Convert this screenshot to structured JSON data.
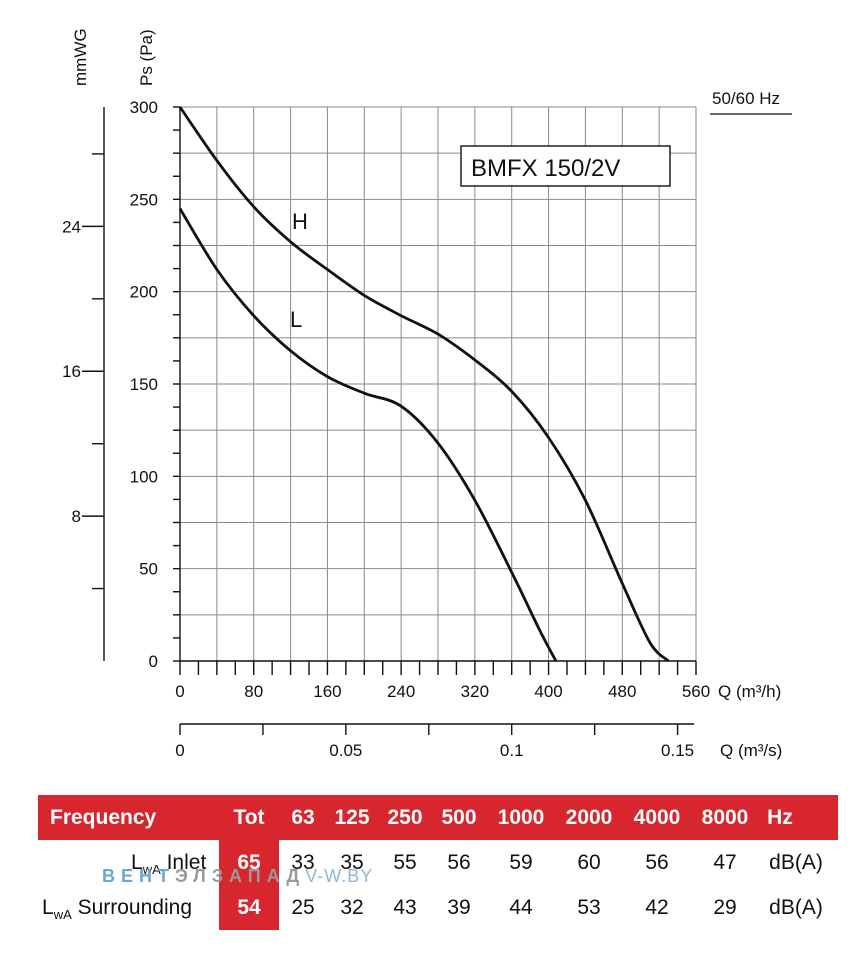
{
  "chart_data": {
    "type": "line",
    "title": "BMFX 150/2V",
    "frequency_label": "50/60 Hz",
    "y_label_pa": "Ps (Pa)",
    "y_label_mmwg": "mmWG",
    "x_label_m3h": "Q (m³/h)",
    "x_label_m3s": "Q (m³/s)",
    "ylim": [
      0,
      300
    ],
    "xlim": [
      0,
      560
    ],
    "y_ticks_pa": [
      "0",
      "50",
      "100",
      "150",
      "200",
      "250",
      "300"
    ],
    "y_ticks_mmwg": [
      "8",
      "16",
      "24"
    ],
    "x_ticks_m3h": [
      "0",
      "80",
      "160",
      "240",
      "320",
      "400",
      "480",
      "560"
    ],
    "x_ticks_m3s": [
      "0",
      "0.05",
      "0.1",
      "0.15"
    ],
    "grid": true,
    "series": [
      {
        "name": "H",
        "x": [
          0,
          40,
          80,
          120,
          160,
          200,
          240,
          280,
          320,
          360,
          400,
          440,
          480,
          510,
          530
        ],
        "y": [
          300,
          271,
          246,
          227,
          212,
          198,
          187,
          177,
          163,
          146,
          121,
          87,
          42,
          10,
          0
        ]
      },
      {
        "name": "L",
        "x": [
          0,
          40,
          80,
          120,
          160,
          200,
          240,
          280,
          320,
          360,
          390,
          408
        ],
        "y": [
          245,
          212,
          187,
          168,
          154,
          145,
          138,
          118,
          87,
          48,
          17,
          0
        ]
      }
    ]
  },
  "sound_table": {
    "header": [
      "Frequency",
      "Tot",
      "63",
      "125",
      "250",
      "500",
      "1000",
      "2000",
      "4000",
      "8000",
      "Hz"
    ],
    "rows": [
      {
        "label_main": "L",
        "label_sub": "wA",
        "label_rest": " Inlet",
        "values": [
          "65",
          "33",
          "35",
          "55",
          "56",
          "59",
          "60",
          "56",
          "47"
        ],
        "unit": "dB(A)"
      },
      {
        "label_main": "L",
        "label_sub": "wA",
        "label_rest": " Surrounding",
        "values": [
          "54",
          "25",
          "32",
          "43",
          "39",
          "44",
          "53",
          "42",
          "29"
        ],
        "unit": "dB(A)"
      }
    ]
  },
  "watermark": {
    "part1": "ВЕНТ",
    "part2": "ЭЛЗАПАД",
    "part3": "V-W.BY"
  }
}
